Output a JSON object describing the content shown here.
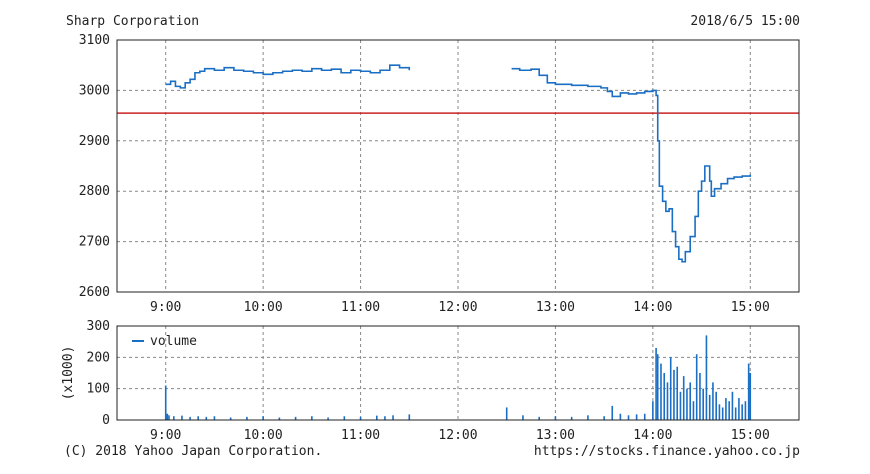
{
  "header": {
    "title": "Sharp Corporation",
    "timestamp": "2018/6/5 15:00"
  },
  "footer": {
    "copyright": "(C) 2018 Yahoo Japan Corporation.",
    "source": "https://stocks.finance.yahoo.co.jp"
  },
  "colors": {
    "line": "#1a6fc4",
    "reference": "#cc2222",
    "grid": "#888888",
    "frame": "#222222"
  },
  "chart_data": [
    {
      "type": "line",
      "title": "",
      "xlabel": "",
      "ylabel": "",
      "x_ticks": [
        "9:00",
        "10:00",
        "11:00",
        "12:00",
        "13:00",
        "14:00",
        "15:00"
      ],
      "y_ticks": [
        2600,
        2700,
        2800,
        2900,
        3000,
        3100
      ],
      "xlim": [
        "8:30",
        "15:30"
      ],
      "ylim": [
        2600,
        3100
      ],
      "grid": true,
      "reference_line": 2955,
      "series": [
        {
          "segment": "morning",
          "points": [
            [
              "9:00",
              3012
            ],
            [
              "9:03",
              3018
            ],
            [
              "9:06",
              3008
            ],
            [
              "9:09",
              3005
            ],
            [
              "9:12",
              3015
            ],
            [
              "9:15",
              3022
            ],
            [
              "9:18",
              3035
            ],
            [
              "9:21",
              3038
            ],
            [
              "9:24",
              3043
            ],
            [
              "9:30",
              3040
            ],
            [
              "9:36",
              3045
            ],
            [
              "9:42",
              3040
            ],
            [
              "9:48",
              3038
            ],
            [
              "9:54",
              3035
            ],
            [
              "10:00",
              3032
            ],
            [
              "10:06",
              3035
            ],
            [
              "10:12",
              3038
            ],
            [
              "10:18",
              3040
            ],
            [
              "10:24",
              3038
            ],
            [
              "10:30",
              3043
            ],
            [
              "10:36",
              3040
            ],
            [
              "10:42",
              3042
            ],
            [
              "10:48",
              3035
            ],
            [
              "10:54",
              3040
            ],
            [
              "11:00",
              3038
            ],
            [
              "11:06",
              3035
            ],
            [
              "11:12",
              3040
            ],
            [
              "11:18",
              3050
            ],
            [
              "11:24",
              3045
            ],
            [
              "11:30",
              3040
            ]
          ]
        },
        {
          "segment": "afternoon",
          "points": [
            [
              "12:33",
              3043
            ],
            [
              "12:38",
              3040
            ],
            [
              "12:45",
              3042
            ],
            [
              "12:50",
              3030
            ],
            [
              "12:55",
              3015
            ],
            [
              "13:00",
              3012
            ],
            [
              "13:10",
              3010
            ],
            [
              "13:20",
              3008
            ],
            [
              "13:28",
              3005
            ],
            [
              "13:32",
              2998
            ],
            [
              "13:35",
              2988
            ],
            [
              "13:40",
              2995
            ],
            [
              "13:45",
              2993
            ],
            [
              "13:50",
              2995
            ],
            [
              "13:55",
              2998
            ],
            [
              "14:00",
              3000
            ],
            [
              "14:02",
              2990
            ],
            [
              "14:03",
              2900
            ],
            [
              "14:04",
              2810
            ],
            [
              "14:06",
              2780
            ],
            [
              "14:08",
              2760
            ],
            [
              "14:10",
              2765
            ],
            [
              "14:12",
              2720
            ],
            [
              "14:14",
              2690
            ],
            [
              "14:16",
              2665
            ],
            [
              "14:18",
              2660
            ],
            [
              "14:20",
              2680
            ],
            [
              "14:23",
              2710
            ],
            [
              "14:26",
              2750
            ],
            [
              "14:28",
              2800
            ],
            [
              "14:30",
              2820
            ],
            [
              "14:32",
              2850
            ],
            [
              "14:35",
              2820
            ],
            [
              "14:36",
              2790
            ],
            [
              "14:38",
              2805
            ],
            [
              "14:42",
              2815
            ],
            [
              "14:46",
              2825
            ],
            [
              "14:50",
              2828
            ],
            [
              "14:55",
              2830
            ],
            [
              "15:00",
              2833
            ]
          ]
        }
      ]
    },
    {
      "type": "bar",
      "title": "",
      "xlabel": "",
      "ylabel": "(x1000)",
      "x_ticks": [
        "9:00",
        "10:00",
        "11:00",
        "12:00",
        "13:00",
        "14:00",
        "15:00"
      ],
      "y_ticks": [
        0,
        100,
        200,
        300
      ],
      "xlim": [
        "8:30",
        "15:30"
      ],
      "ylim": [
        0,
        300
      ],
      "grid": true,
      "legend": {
        "position": "top-left",
        "entries": [
          "volume"
        ]
      },
      "series": [
        {
          "name": "volume",
          "points": [
            [
              "9:00",
              110
            ],
            [
              "9:01",
              20
            ],
            [
              "9:02",
              15
            ],
            [
              "9:05",
              12
            ],
            [
              "9:10",
              14
            ],
            [
              "9:15",
              10
            ],
            [
              "9:20",
              12
            ],
            [
              "9:25",
              10
            ],
            [
              "9:30",
              12
            ],
            [
              "9:40",
              8
            ],
            [
              "9:50",
              10
            ],
            [
              "10:00",
              12
            ],
            [
              "10:10",
              8
            ],
            [
              "10:20",
              10
            ],
            [
              "10:30",
              12
            ],
            [
              "10:40",
              8
            ],
            [
              "10:50",
              12
            ],
            [
              "11:00",
              10
            ],
            [
              "11:10",
              14
            ],
            [
              "11:15",
              12
            ],
            [
              "11:20",
              15
            ],
            [
              "11:30",
              18
            ],
            [
              "12:30",
              40
            ],
            [
              "12:40",
              15
            ],
            [
              "12:50",
              10
            ],
            [
              "13:00",
              12
            ],
            [
              "13:10",
              10
            ],
            [
              "13:20",
              15
            ],
            [
              "13:30",
              12
            ],
            [
              "13:35",
              45
            ],
            [
              "13:40",
              20
            ],
            [
              "13:45",
              15
            ],
            [
              "13:50",
              18
            ],
            [
              "13:55",
              20
            ],
            [
              "14:00",
              60
            ],
            [
              "14:02",
              230
            ],
            [
              "14:03",
              210
            ],
            [
              "14:05",
              180
            ],
            [
              "14:07",
              150
            ],
            [
              "14:09",
              120
            ],
            [
              "14:11",
              200
            ],
            [
              "14:13",
              160
            ],
            [
              "14:15",
              170
            ],
            [
              "14:17",
              90
            ],
            [
              "14:19",
              140
            ],
            [
              "14:21",
              100
            ],
            [
              "14:23",
              120
            ],
            [
              "14:25",
              60
            ],
            [
              "14:27",
              210
            ],
            [
              "14:29",
              150
            ],
            [
              "14:31",
              100
            ],
            [
              "14:33",
              270
            ],
            [
              "14:35",
              80
            ],
            [
              "14:37",
              120
            ],
            [
              "14:39",
              90
            ],
            [
              "14:41",
              50
            ],
            [
              "14:43",
              40
            ],
            [
              "14:45",
              70
            ],
            [
              "14:47",
              60
            ],
            [
              "14:49",
              90
            ],
            [
              "14:51",
              40
            ],
            [
              "14:53",
              70
            ],
            [
              "14:55",
              50
            ],
            [
              "14:57",
              60
            ],
            [
              "14:59",
              180
            ],
            [
              "15:00",
              150
            ]
          ]
        }
      ]
    }
  ]
}
